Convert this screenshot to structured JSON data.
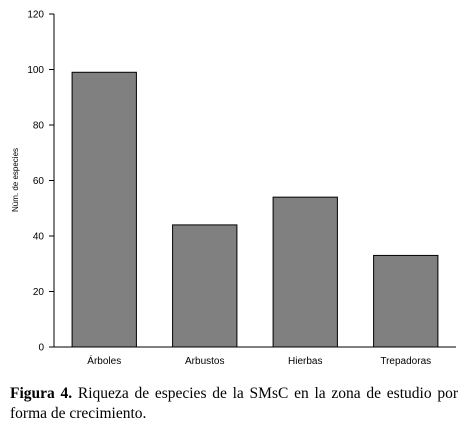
{
  "chart_data": {
    "type": "bar",
    "categories": [
      "Árboles",
      "Arbustos",
      "Hierbas",
      "Trepadoras"
    ],
    "values": [
      99,
      44,
      54,
      33
    ],
    "xlabel": "",
    "ylabel": "Núm. de especies",
    "ylim": [
      0,
      120
    ],
    "yticks": [
      0,
      20,
      40,
      60,
      80,
      100,
      120
    ],
    "grid": false,
    "legend": "none",
    "bar_color": "#808080",
    "bar_edge_color": "#000000"
  },
  "caption": {
    "label": "Figura 4.",
    "text": " Riqueza de especies de la SMsC en la zona de estudio por forma de crecimiento."
  }
}
